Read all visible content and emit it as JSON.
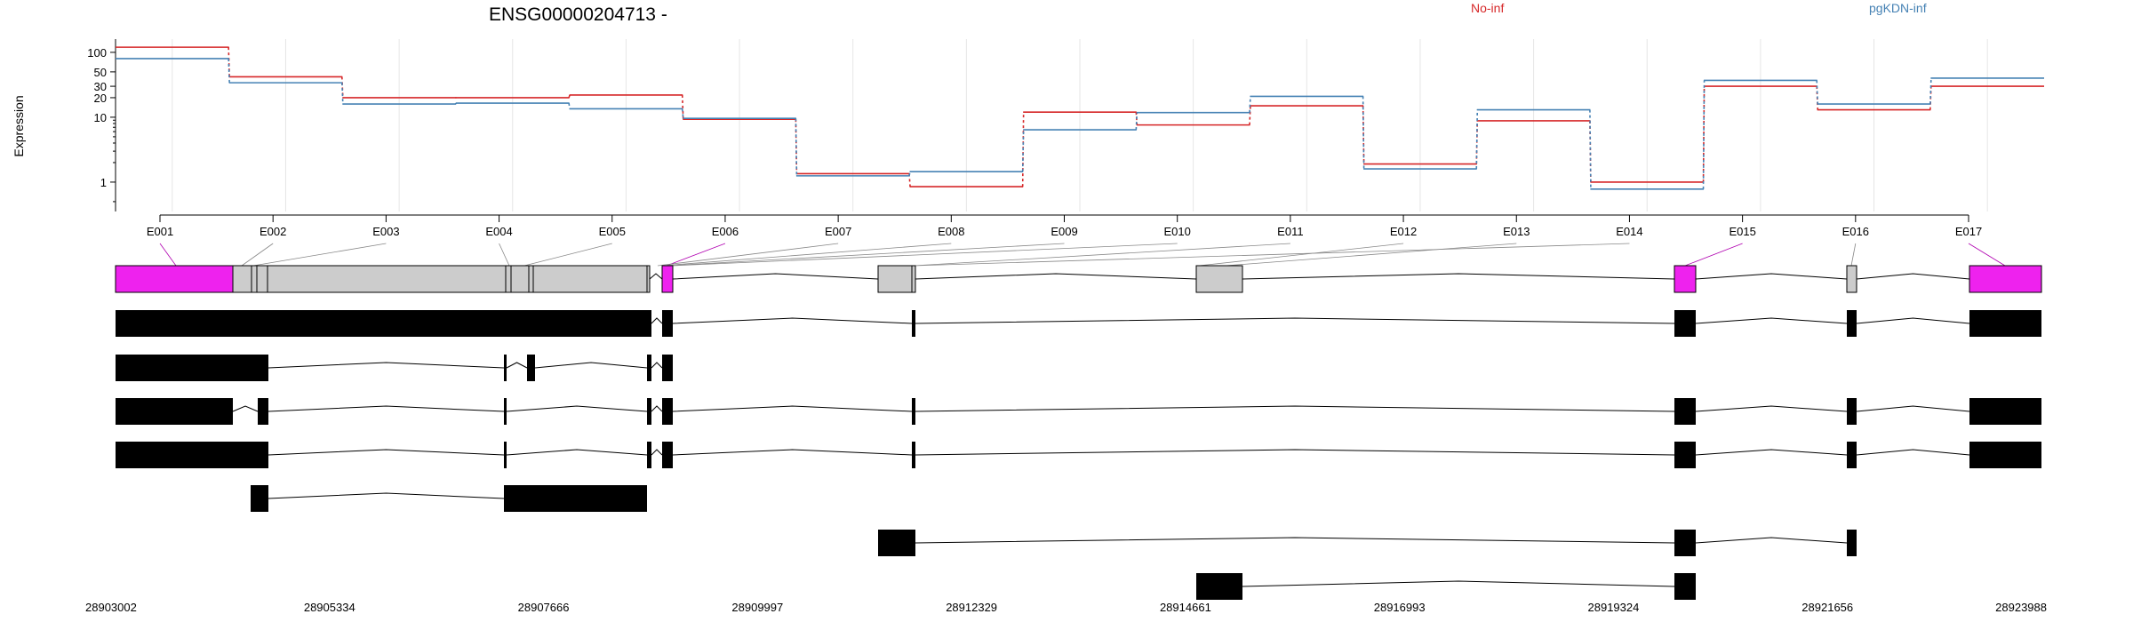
{
  "chart_data": {
    "type": "line",
    "title": "ENSG00000204713 -",
    "ylabel": "Expression",
    "y_scale": "log",
    "ylim": [
      0.4,
      160
    ],
    "y_ticks": [
      {
        "value": 100,
        "label": "100"
      },
      {
        "value": 50,
        "label": "50"
      },
      {
        "value": 30,
        "label": "30"
      },
      {
        "value": 20,
        "label": "20"
      },
      {
        "value": 10,
        "label": "10"
      },
      {
        "value": 1,
        "label": "1"
      }
    ],
    "grid": true,
    "legend_placement": "top",
    "categories": [
      "E001",
      "E002",
      "E003",
      "E004",
      "E005",
      "E006",
      "E007",
      "E008",
      "E009",
      "E010",
      "E011",
      "E012",
      "E013",
      "E014",
      "E015",
      "E016",
      "E017"
    ],
    "series": [
      {
        "name": "No-inf",
        "color": "#d62728",
        "values": [
          120,
          42,
          20,
          20,
          22,
          9.3,
          1.35,
          0.85,
          12,
          7.6,
          15,
          1.9,
          8.8,
          1.0,
          30,
          13,
          30
        ]
      },
      {
        "name": "pgKDN-inf",
        "color": "#4682b4",
        "values": [
          80,
          34,
          16,
          16.5,
          13.5,
          9.6,
          1.25,
          1.45,
          6.4,
          11.8,
          21,
          1.6,
          13,
          0.78,
          37,
          16,
          40
        ]
      }
    ],
    "genomic_axis": {
      "tick_labels": [
        "28903002",
        "28905334",
        "28907666",
        "28909997",
        "28912329",
        "28914661",
        "28916993",
        "28919324",
        "28921656",
        "28923988"
      ]
    },
    "gene_model": {
      "exon_highlight_color": "#ee22ee",
      "exon_default_color": "#cccccc",
      "highlighted_exons": [
        "E001",
        "E006",
        "E015",
        "E017"
      ]
    },
    "transcripts_count": 7
  }
}
